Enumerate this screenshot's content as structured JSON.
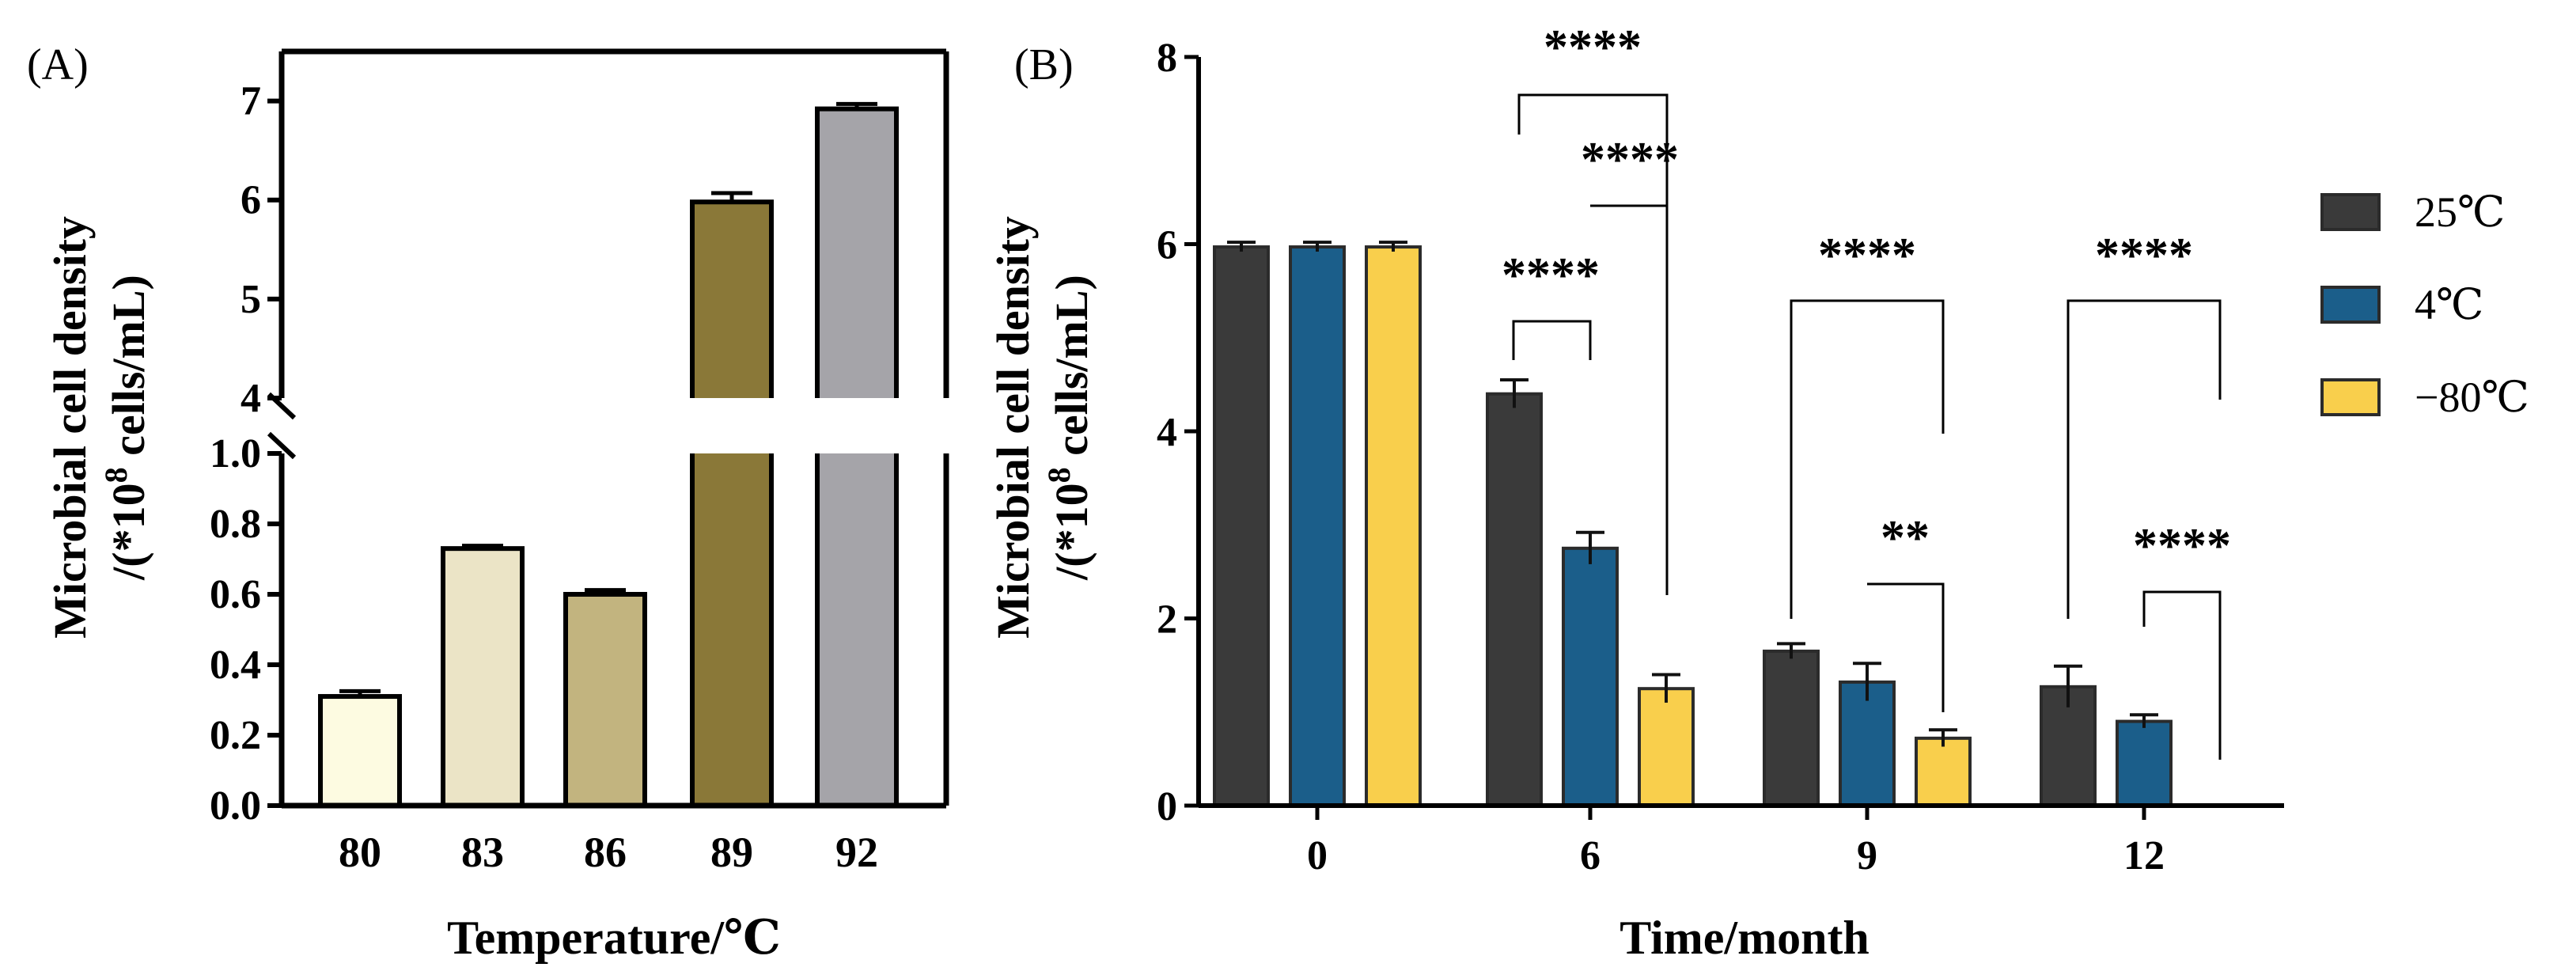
{
  "chart_data": [
    {
      "panel": "(A)",
      "type": "bar",
      "categories": [
        "80",
        "83",
        "86",
        "89",
        "92"
      ],
      "values": [
        0.31,
        0.73,
        0.6,
        5.98,
        6.92
      ],
      "errors": [
        0.015,
        0.008,
        0.012,
        0.09,
        0.05
      ],
      "colors": [
        "#fdfbe1",
        "#ebe4c6",
        "#c2b47f",
        "#8a7838",
        "#a5a4a9"
      ],
      "xlabel": "Temperature/℃",
      "ylabel_line1": "Microbial cell density",
      "ylabel_line2_prefix": "/(*10",
      "ylabel_sup": "8",
      "ylabel_line2_suffix": " cells/mL)",
      "axis_break": true,
      "ylim_lower": [
        0,
        1.0
      ],
      "ylim_upper": [
        4,
        7.5
      ],
      "yticks_lower": [
        "0.0",
        "0.2",
        "0.4",
        "0.6",
        "0.8",
        "1.0"
      ],
      "yticks_upper": [
        "4",
        "5",
        "6",
        "7"
      ]
    },
    {
      "panel": "(B)",
      "type": "bar",
      "categories": [
        "0",
        "6",
        "9",
        "12"
      ],
      "series": [
        {
          "name": "25℃",
          "color": "#3a3a3a",
          "values": [
            5.97,
            4.4,
            1.65,
            1.27
          ],
          "errors": [
            0.05,
            0.15,
            0.08,
            0.22
          ]
        },
        {
          "name": "4℃",
          "color": "#1b5e8a",
          "values": [
            5.97,
            2.75,
            1.32,
            0.9
          ],
          "errors": [
            0.05,
            0.17,
            0.2,
            0.07
          ]
        },
        {
          "name": "−80℃",
          "color": "#f9cf4c",
          "values": [
            5.97,
            1.25,
            0.72,
            null
          ],
          "errors": [
            0.05,
            0.15,
            0.09,
            null
          ]
        }
      ],
      "xlabel": "Time/month",
      "ylabel_line1": "Microbial cell density",
      "ylabel_line2_prefix": "/(*10",
      "ylabel_sup": "8",
      "ylabel_line2_suffix": " cells/mL)",
      "ylim": [
        0,
        8
      ],
      "yticks": [
        "0",
        "2",
        "4",
        "6",
        "8"
      ],
      "legend_position": "right",
      "significance": [
        {
          "group": "6",
          "from": 0,
          "to": 2,
          "label": "****"
        },
        {
          "group": "6",
          "from": 1,
          "to": 2,
          "label": "****"
        },
        {
          "group": "6",
          "from": 0,
          "to": 1,
          "label": "****"
        },
        {
          "group": "9",
          "from": 0,
          "to": 2,
          "label": "****"
        },
        {
          "group": "9",
          "from": 1,
          "to": 2,
          "label": "**"
        },
        {
          "group": "12",
          "from": 0,
          "to": 2,
          "label": "****"
        },
        {
          "group": "12",
          "from": 1,
          "to": 2,
          "label": "****"
        }
      ]
    }
  ]
}
